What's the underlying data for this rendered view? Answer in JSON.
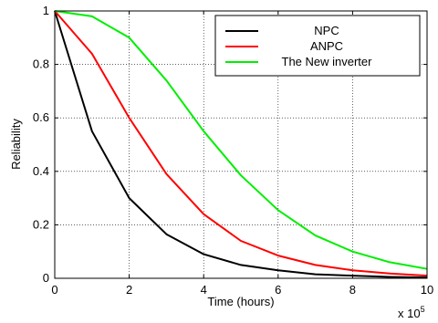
{
  "chart_data": {
    "type": "line",
    "xlabel": "Time (hours)",
    "ylabel": "Reliability",
    "x_multiplier_label": "x 10",
    "x_multiplier_exponent": "5",
    "xlim": [
      0,
      10
    ],
    "ylim": [
      0,
      1
    ],
    "x_ticks": [
      "0",
      "2",
      "4",
      "6",
      "8",
      "10"
    ],
    "y_ticks": [
      "0",
      "0.2",
      "0.4",
      "0.6",
      "0.8",
      "1"
    ],
    "x_tick_values": [
      0,
      2,
      4,
      6,
      8,
      10
    ],
    "y_tick_values": [
      0,
      0.2,
      0.4,
      0.6,
      0.8,
      1
    ],
    "grid": true,
    "legend_position": "top-right",
    "x": [
      0,
      1,
      2,
      3,
      4,
      5,
      6,
      7,
      8,
      9,
      10
    ],
    "series": [
      {
        "name": "NPC",
        "color": "#000000",
        "values": [
          1.0,
          0.55,
          0.3,
          0.165,
          0.09,
          0.05,
          0.03,
          0.015,
          0.01,
          0.005,
          0.003
        ]
      },
      {
        "name": "ANPC",
        "color": "#ff0000",
        "values": [
          1.0,
          0.84,
          0.6,
          0.39,
          0.24,
          0.14,
          0.085,
          0.05,
          0.03,
          0.018,
          0.01
        ]
      },
      {
        "name": "The New inverter",
        "color": "#00ee00",
        "values": [
          1.0,
          0.98,
          0.9,
          0.74,
          0.55,
          0.385,
          0.255,
          0.16,
          0.1,
          0.06,
          0.035
        ]
      }
    ]
  }
}
